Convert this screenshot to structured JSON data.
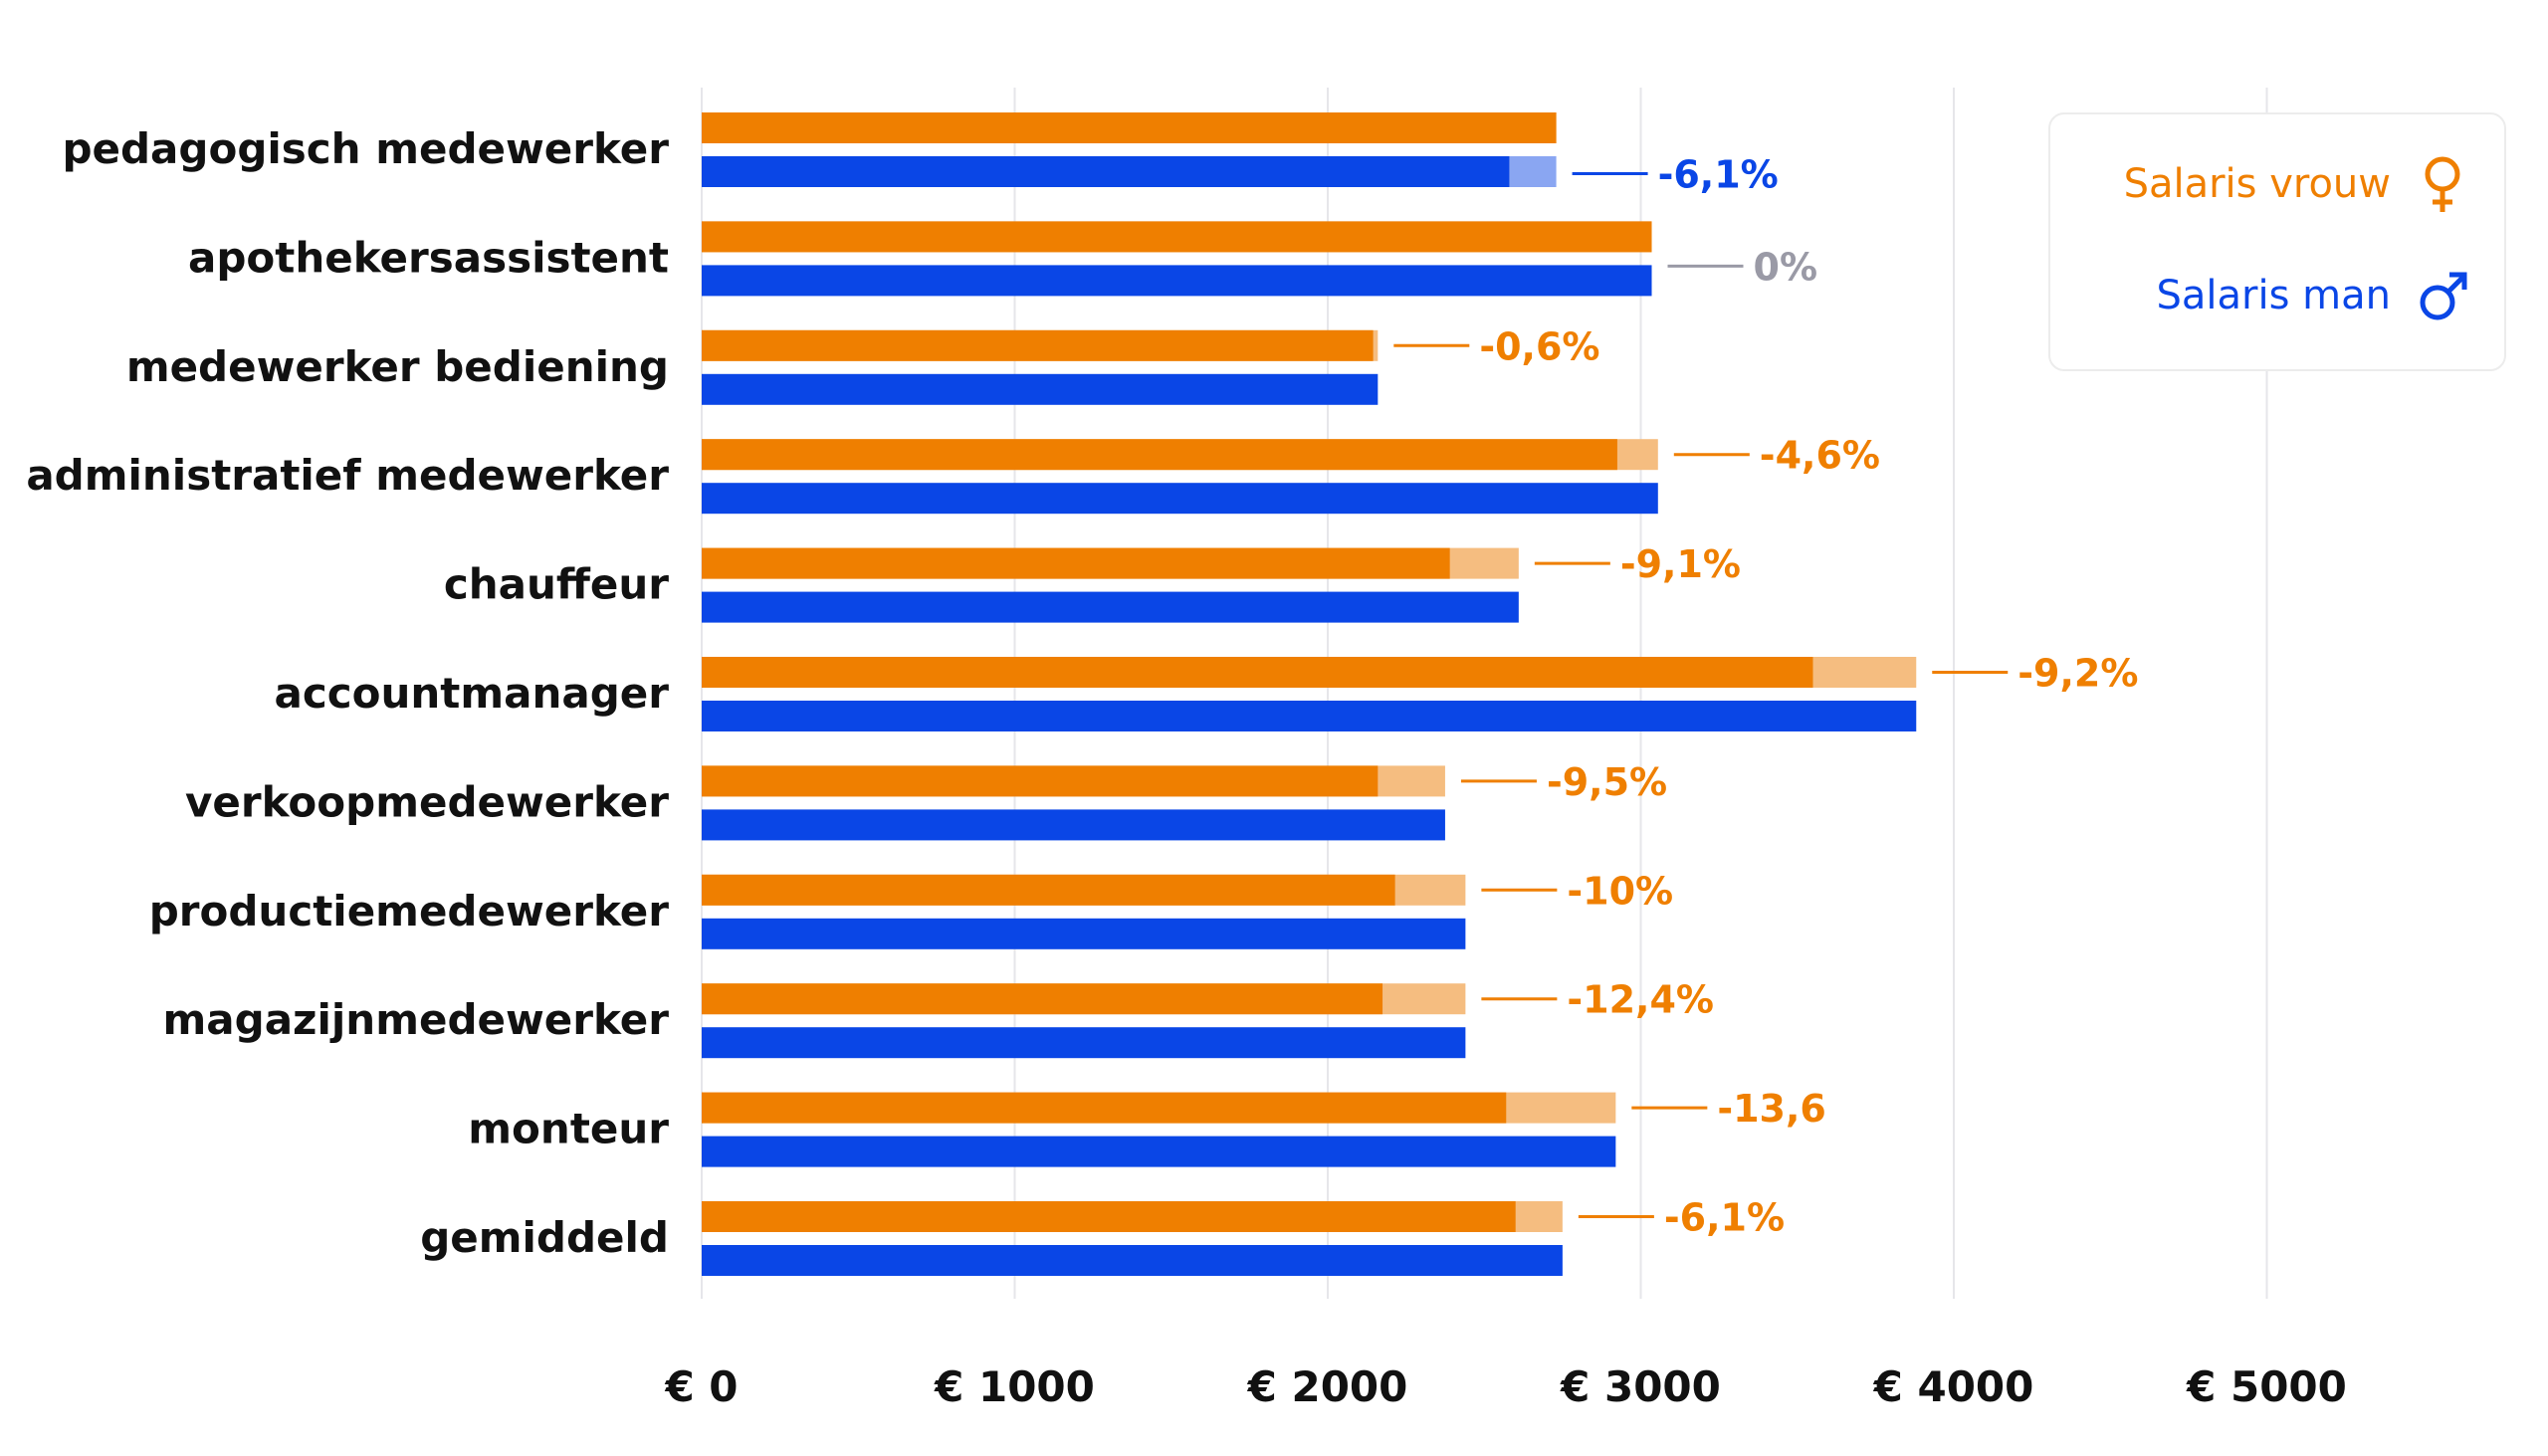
{
  "colors": {
    "female": "#ef7f00",
    "female_light": "#f5bd80",
    "male": "#0a46e6",
    "male_light": "#8aa6f2",
    "neutral": "#9a9aa6",
    "grid": "#e6e6ea"
  },
  "legend": {
    "female_label": "Salaris vrouw",
    "male_label": "Salaris man",
    "female_icon": "female-symbol-icon",
    "male_icon": "male-symbol-icon",
    "placement": "top-right"
  },
  "chart_data": {
    "type": "bar",
    "orientation": "horizontal",
    "categories": [
      "pedagogisch medewerker",
      "apothekersassistent",
      "medewerker bediening",
      "administratief medewerker",
      "chauffeur",
      "accountmanager",
      "verkoopmedewerker",
      "productiemedewerker",
      "magazijnmedewerker",
      "monteur",
      "gemiddeld"
    ],
    "series": [
      {
        "name": "Salaris vrouw",
        "values": [
          2730,
          3035,
          2160,
          3055,
          2610,
          3880,
          2375,
          2440,
          2440,
          2920,
          2750
        ]
      },
      {
        "name": "Salaris man",
        "values": [
          2580,
          3035,
          2160,
          3055,
          2610,
          3880,
          2375,
          2440,
          2440,
          2920,
          2750
        ]
      }
    ],
    "female_actual": [
      2730,
      3035,
      2145,
      2925,
      2390,
      3550,
      2160,
      2215,
      2175,
      2570,
      2600
    ],
    "gap_labels": [
      "-6,1%",
      "0%",
      "-0,6%",
      "-4,6%",
      "-9,1%",
      "-9,2%",
      "-9,5%",
      "-10%",
      "-12,4%",
      "-13,6",
      "-6,1%"
    ],
    "gap_highlight": [
      "male",
      "neutral",
      "female",
      "female",
      "female",
      "female",
      "female",
      "female",
      "female",
      "female",
      "female"
    ],
    "x_ticks": [
      "€ 0",
      "€ 1000",
      "€ 2000",
      "€ 3000",
      "€ 4000",
      "€ 5000"
    ],
    "x_tick_values": [
      0,
      1000,
      2000,
      3000,
      4000,
      5000
    ],
    "xlim": [
      0,
      5000
    ],
    "grid": true,
    "title": "",
    "xlabel": "",
    "ylabel": ""
  }
}
